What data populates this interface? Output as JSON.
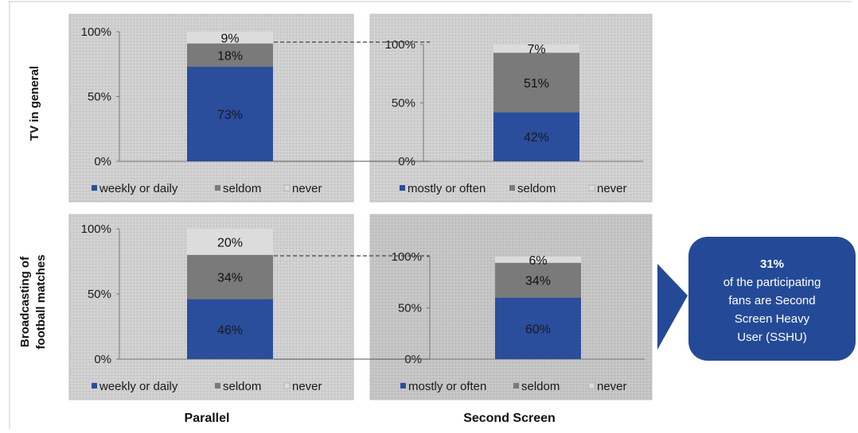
{
  "row_labels": [
    "TV in general",
    "Broadcasting of",
    "football matches"
  ],
  "column_labels": [
    "Parallel",
    "Second Screen"
  ],
  "callout": {
    "headline": "31%",
    "lines": [
      "of the participating",
      "fans are Second",
      "Screen Heavy",
      "User (SSHU)"
    ]
  },
  "colors": {
    "frequent": "#2a4d9c",
    "seldom": "#7a7a7a",
    "never": "#dcdcdc",
    "callout": "#244a97"
  },
  "chart_data": [
    {
      "type": "bar",
      "stacked": true,
      "ylim": [
        0,
        100
      ],
      "yticks": [
        "0%",
        "50%",
        "100%"
      ],
      "categories": [
        ""
      ],
      "series": [
        {
          "name": "weekly or daily",
          "values": [
            73
          ]
        },
        {
          "name": "seldom",
          "values": [
            18
          ]
        },
        {
          "name": "never",
          "values": [
            9
          ]
        }
      ],
      "data_labels": [
        "73%",
        "18%",
        "9%"
      ],
      "legend_position": "bottom"
    },
    {
      "type": "bar",
      "stacked": true,
      "ylim": [
        0,
        100
      ],
      "yticks": [
        "0%",
        "50%",
        "100%"
      ],
      "categories": [
        ""
      ],
      "series": [
        {
          "name": "mostly  or often",
          "values": [
            42
          ]
        },
        {
          "name": "seldom",
          "values": [
            51
          ]
        },
        {
          "name": "never",
          "values": [
            7
          ]
        }
      ],
      "data_labels": [
        "42%",
        "51%",
        "7%"
      ],
      "legend_position": "bottom"
    },
    {
      "type": "bar",
      "stacked": true,
      "ylim": [
        0,
        100
      ],
      "yticks": [
        "0%",
        "50%",
        "100%"
      ],
      "categories": [
        ""
      ],
      "series": [
        {
          "name": "weekly or daily",
          "values": [
            46
          ]
        },
        {
          "name": "seldom",
          "values": [
            34
          ]
        },
        {
          "name": "never",
          "values": [
            20
          ]
        }
      ],
      "data_labels": [
        "46%",
        "34%",
        "20%"
      ],
      "legend_position": "bottom"
    },
    {
      "type": "bar",
      "stacked": true,
      "ylim": [
        0,
        100
      ],
      "yticks": [
        "0%",
        "50%",
        "100%"
      ],
      "categories": [
        ""
      ],
      "series": [
        {
          "name": "mostly or often",
          "values": [
            60
          ]
        },
        {
          "name": "seldom",
          "values": [
            34
          ]
        },
        {
          "name": "never",
          "values": [
            6
          ]
        }
      ],
      "data_labels": [
        "60%",
        "34%",
        "6%"
      ],
      "legend_position": "bottom"
    }
  ]
}
